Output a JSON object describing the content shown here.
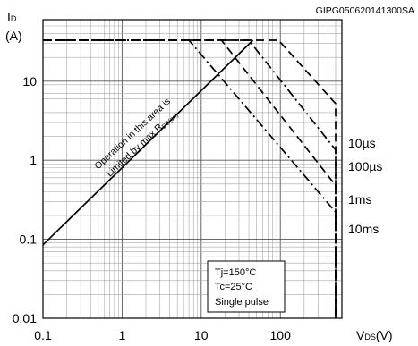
{
  "chart_data": {
    "type": "line",
    "code": "GIPG050620141300SA",
    "ylabel": {
      "sym": "I",
      "sub": "D",
      "unit": "(A)"
    },
    "xlabel": {
      "sym": "V",
      "sub": "DS",
      "unit": "(V)"
    },
    "xscale": "log",
    "yscale": "log",
    "xlim": [
      0.1,
      600
    ],
    "ylim": [
      0.01,
      60
    ],
    "grid": true,
    "x_ticks": [
      {
        "value": 0.1,
        "label": "0.1"
      },
      {
        "value": 1,
        "label": "1"
      },
      {
        "value": 10,
        "label": "10"
      },
      {
        "value": 100,
        "label": "100"
      }
    ],
    "y_ticks": [
      {
        "value": 0.01,
        "label": "0.01"
      },
      {
        "value": 0.1,
        "label": "0.1"
      },
      {
        "value": 1,
        "label": "1"
      },
      {
        "value": 10,
        "label": "10"
      }
    ],
    "series": [
      {
        "key": "rdson",
        "style": "solid",
        "points": [
          [
            0.1,
            0.085
          ],
          [
            45,
            33
          ]
        ]
      },
      {
        "key": "10us",
        "name": "10µs",
        "style": "dash",
        "points": [
          [
            0.1,
            33
          ],
          [
            95,
            33
          ],
          [
            500,
            5.2
          ],
          [
            500,
            0.01
          ]
        ]
      },
      {
        "key": "100us",
        "name": "100µs",
        "style": "dashdot",
        "points": [
          [
            0.1,
            33
          ],
          [
            40,
            33
          ],
          [
            500,
            1.35
          ],
          [
            500,
            0.01
          ]
        ]
      },
      {
        "key": "1ms",
        "name": "1ms",
        "style": "dash",
        "points": [
          [
            0.1,
            33
          ],
          [
            18,
            33
          ],
          [
            500,
            0.48
          ],
          [
            500,
            0.01
          ]
        ]
      },
      {
        "key": "10ms",
        "name": "10ms",
        "style": "dashdot",
        "points": [
          [
            0.1,
            33
          ],
          [
            7,
            33
          ],
          [
            500,
            0.22
          ],
          [
            500,
            0.01
          ]
        ]
      }
    ],
    "annotation": {
      "line1": "Operation in this area is",
      "line2_text": "Limited by max R",
      "line2_sub": "DS(on)"
    },
    "conditions": [
      "Tj=150°C",
      "Tc=25°C",
      "Single pulse"
    ]
  }
}
